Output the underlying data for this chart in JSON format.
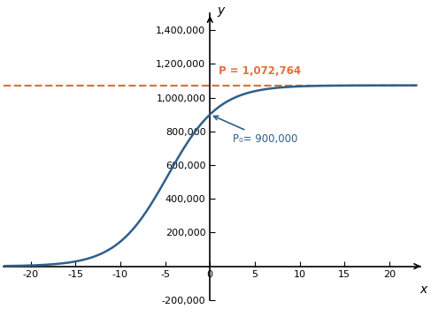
{
  "K": 1072764,
  "P0": 900000,
  "r": 0.35,
  "x_min": -23,
  "x_max": 23,
  "y_min": -200000,
  "y_max": 1500000,
  "x_ticks": [
    -20,
    -15,
    -10,
    -5,
    0,
    5,
    10,
    15,
    20
  ],
  "y_ticks": [
    -200000,
    200000,
    400000,
    600000,
    800000,
    1000000,
    1200000,
    1400000
  ],
  "curve_color": "#2e5f8a",
  "asymptote_color": "#e07040",
  "asymptote_label": "P = 1,072,764",
  "p0_label": "P₀= 900,000",
  "xlabel": "x",
  "ylabel": "y",
  "curve_linewidth": 1.8,
  "asymptote_linewidth": 1.6,
  "background_color": "#ffffff"
}
